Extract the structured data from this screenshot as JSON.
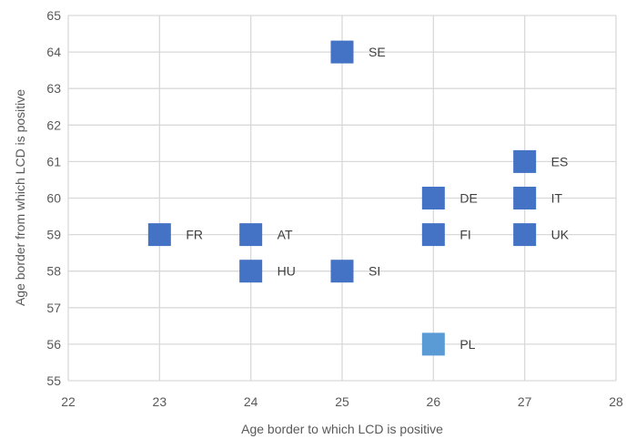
{
  "chart_data": {
    "type": "scatter",
    "xlabel": "Age border to which LCD is positive",
    "ylabel": "Age border from which LCD is positive",
    "xlim": [
      22,
      28
    ],
    "ylim": [
      55,
      65
    ],
    "xticks": [
      22,
      23,
      24,
      25,
      26,
      27,
      28
    ],
    "yticks": [
      55,
      56,
      57,
      58,
      59,
      60,
      61,
      62,
      63,
      64,
      65
    ],
    "grid": true,
    "colors": {
      "marker": "#4472C4",
      "highlight": "#5B9BD5",
      "grid": "#D9D9D9"
    },
    "points": [
      {
        "label": "SE",
        "x": 25,
        "y": 64,
        "highlight": false
      },
      {
        "label": "ES",
        "x": 27,
        "y": 61,
        "highlight": false
      },
      {
        "label": "DE",
        "x": 26,
        "y": 60,
        "highlight": false
      },
      {
        "label": "IT",
        "x": 27,
        "y": 60,
        "highlight": false
      },
      {
        "label": "FR",
        "x": 23,
        "y": 59,
        "highlight": false
      },
      {
        "label": "AT",
        "x": 24,
        "y": 59,
        "highlight": false
      },
      {
        "label": "FI",
        "x": 26,
        "y": 59,
        "highlight": false
      },
      {
        "label": "UK",
        "x": 27,
        "y": 59,
        "highlight": false
      },
      {
        "label": "HU",
        "x": 24,
        "y": 58,
        "highlight": false
      },
      {
        "label": "SI",
        "x": 25,
        "y": 58,
        "highlight": false
      },
      {
        "label": "PL",
        "x": 26,
        "y": 56,
        "highlight": true
      }
    ]
  }
}
